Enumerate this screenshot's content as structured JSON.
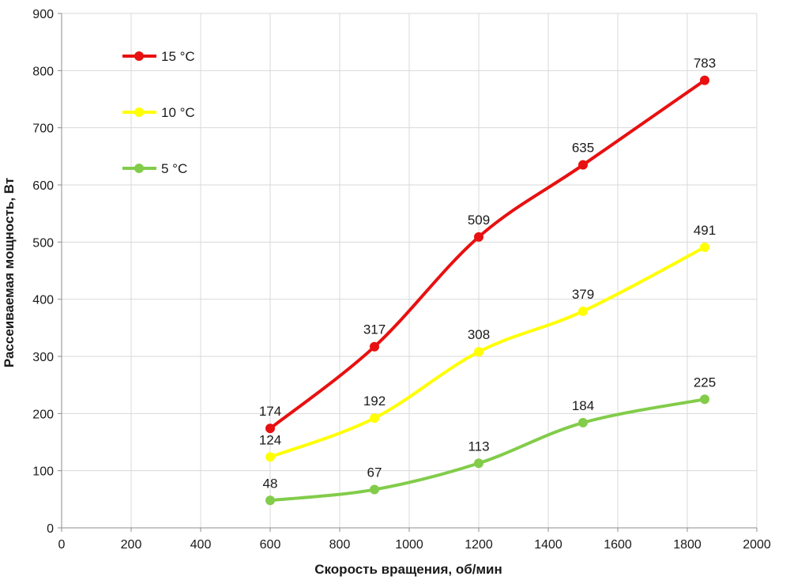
{
  "chart_data": {
    "type": "line",
    "xlabel": "Скорость вращения, об/мин",
    "ylabel": "Рассеиваемая мощность, Вт",
    "xlim": [
      0,
      2000
    ],
    "ylim": [
      0,
      900
    ],
    "x_ticks": [
      0,
      200,
      400,
      600,
      800,
      1000,
      1200,
      1400,
      1600,
      1800,
      2000
    ],
    "y_ticks": [
      0,
      100,
      200,
      300,
      400,
      500,
      600,
      700,
      800,
      900
    ],
    "grid": true,
    "legend_position": "top-left",
    "x": [
      600,
      900,
      1200,
      1500,
      1850
    ],
    "series": [
      {
        "name": "15 °C",
        "color": "#e81010",
        "values": [
          174,
          317,
          509,
          635,
          783
        ]
      },
      {
        "name": "10 °C",
        "color": "#ffff00",
        "values": [
          124,
          192,
          308,
          379,
          491
        ]
      },
      {
        "name": "5 °C",
        "color": "#82cc4a",
        "values": [
          48,
          67,
          113,
          184,
          225
        ]
      }
    ]
  }
}
